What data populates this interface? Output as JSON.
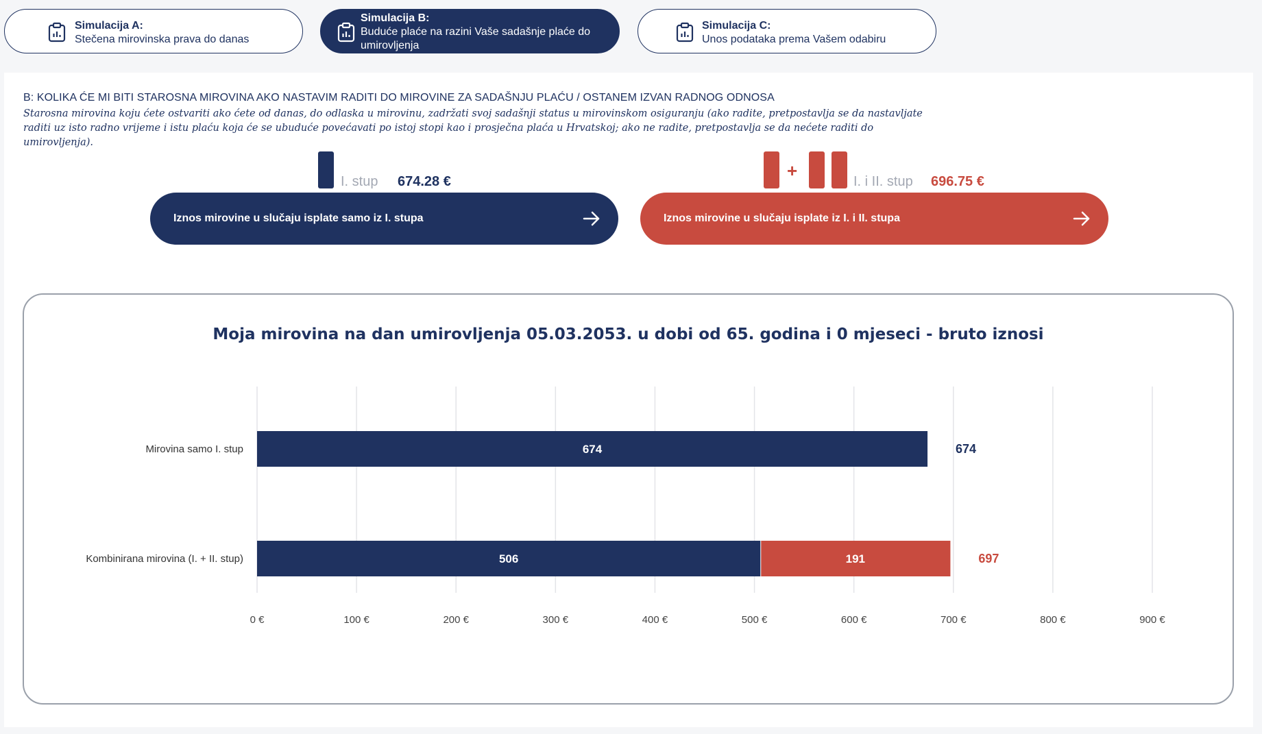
{
  "tabs": [
    {
      "title": "Simulacija A:",
      "subtitle": "Stečena mirovinska prava do danas"
    },
    {
      "title": "Simulacija B:",
      "subtitle": "Buduće plaće na razini Vaše sadašnje plaće do umirovljenja"
    },
    {
      "title": "Simulacija C:",
      "subtitle": "Unos podataka prema Vašem odabiru"
    }
  ],
  "section": {
    "heading": "B: KOLIKA ĆE MI BITI STAROSNA MIROVINA AKO NASTAVIM RADITI DO MIROVINE ZA SADAŠNJU PLAĆU / OSTANEM IZVAN RADNOG ODNOSA",
    "description": "Starosna mirovina koju ćete ostvariti ako ćete od danas, do odlaska u mirovinu, zadržati svoj sadašnji status u mirovinskom osiguranju (ako radite, pretpostavlja se da nastavljate raditi uz isto radno vrijeme i istu plaću koja će se ubuduće povećavati po istoj stopi kao i prosječna plaća u Hrvatskoj; ako ne radite, pretpostavlja se da nećete raditi do umirovljenja)."
  },
  "pillars": {
    "first": {
      "label": "I. stup",
      "value": "674.28 €"
    },
    "combined": {
      "label": "I. i II. stup",
      "value": "696.75 €",
      "plus": "+"
    }
  },
  "buttons": {
    "first_only": "Iznos mirovine u slučaju isplate samo iz I. stupa",
    "combined": "Iznos mirovine u slučaju isplate iz I. i II. stupa"
  },
  "colors": {
    "navy": "#1f3260",
    "red": "#c84b3f",
    "grid": "#e3e4e8"
  },
  "icons": {
    "tab": "clipboard-chart-icon",
    "button": "arrow-right-icon"
  },
  "chart_data": {
    "type": "bar",
    "orientation": "horizontal",
    "stacked": true,
    "title": "Moja mirovina na dan umirovljenja 05.03.2053. u dobi od 65. godina i 0 mjeseci - bruto iznosi",
    "categories": [
      "Mirovina samo I. stup",
      "Kombinirana mirovina (I. + II. stup)"
    ],
    "series": [
      {
        "color": "#1f3260",
        "values": [
          674,
          506
        ]
      },
      {
        "color": "#c84b3f",
        "values": [
          0,
          191
        ]
      }
    ],
    "totals": [
      674,
      697
    ],
    "total_colors": [
      "#1f3260",
      "#c84b3f"
    ],
    "xlim": [
      0,
      900
    ],
    "xticks": [
      0,
      100,
      200,
      300,
      400,
      500,
      600,
      700,
      800,
      900
    ],
    "xtick_labels": [
      "0 €",
      "100 €",
      "200 €",
      "300 €",
      "400 €",
      "500 €",
      "600 €",
      "700 €",
      "800 €",
      "900 €"
    ],
    "grid": true
  }
}
